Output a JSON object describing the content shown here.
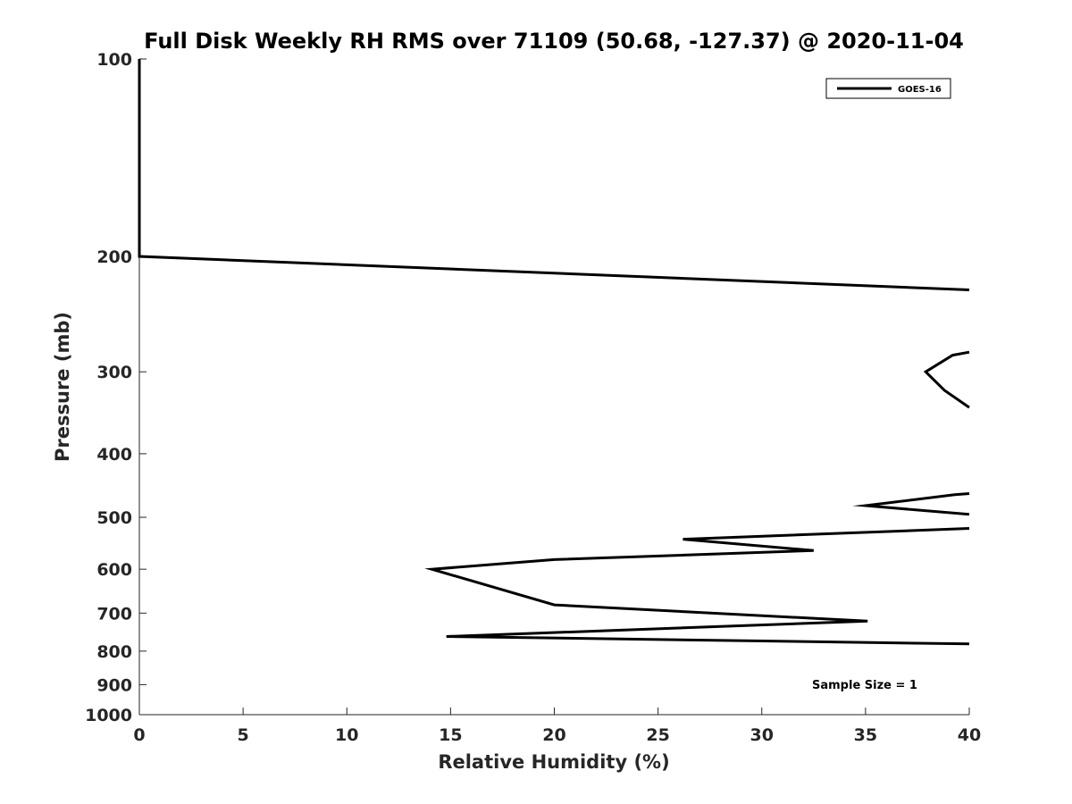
{
  "chart_data": {
    "type": "line",
    "title": "Full Disk Weekly RH RMS over 71109 (50.68, -127.37) @ 2020-11-04",
    "xlabel": "Relative Humidity (%)",
    "ylabel": "Pressure (mb)",
    "xlim": [
      0,
      40
    ],
    "ylim": [
      100,
      1000
    ],
    "y_scale": "log",
    "y_reversed": true,
    "grid": false,
    "legend_position": "top-right",
    "x_ticks": [
      "0",
      "5",
      "10",
      "15",
      "20",
      "25",
      "30",
      "35",
      "40"
    ],
    "y_ticks": [
      {
        "value": 100,
        "label": "100"
      },
      {
        "value": 200,
        "label": "200"
      },
      {
        "value": 300,
        "label": "300"
      },
      {
        "value": 400,
        "label": "400"
      },
      {
        "value": 500,
        "label": "500"
      },
      {
        "value": 600,
        "label": "600"
      },
      {
        "value": 700,
        "label": "700"
      },
      {
        "value": 800,
        "label": "800"
      },
      {
        "value": 900,
        "label": "900"
      },
      {
        "value": 1000,
        "label": "1000"
      }
    ],
    "series": [
      {
        "name": "GOES-16",
        "color": "#000000",
        "segments": [
          [
            [
              0,
              100
            ],
            [
              0,
              150
            ],
            [
              0,
              200
            ],
            [
              40,
              225
            ]
          ],
          [
            [
              40,
              280
            ],
            [
              39.2,
              283
            ],
            [
              37.9,
              300
            ],
            [
              38.8,
              320
            ],
            [
              40,
              340
            ]
          ],
          [
            [
              40,
              460
            ],
            [
              39.3,
              462
            ],
            [
              35,
              480
            ],
            [
              40,
              495
            ]
          ],
          [
            [
              40,
              520
            ],
            [
              26.2,
              540
            ],
            [
              32.5,
              562
            ],
            [
              20,
              580
            ],
            [
              14.1,
              600
            ],
            [
              20,
              680
            ],
            [
              35.1,
              720
            ],
            [
              14.8,
              760
            ],
            [
              40,
              780
            ]
          ]
        ]
      }
    ],
    "annotation": "Sample Size = 1"
  }
}
